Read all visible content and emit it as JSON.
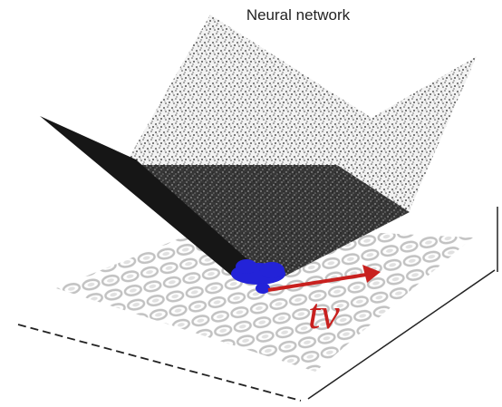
{
  "title": "Neural network",
  "annotation": "tv"
}
